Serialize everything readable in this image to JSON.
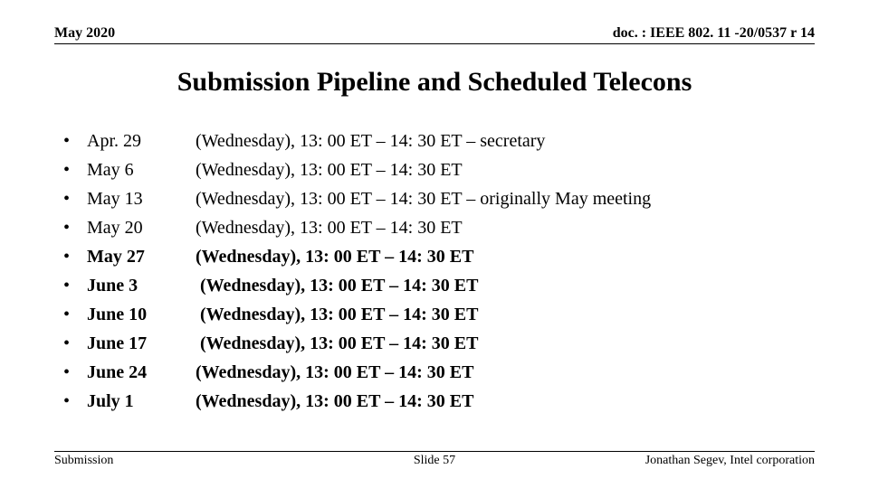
{
  "header": {
    "left": "May 2020",
    "right": "doc. : IEEE 802. 11 -20/0537 r 14"
  },
  "title": "Submission Pipeline and Scheduled Telecons",
  "rows": [
    {
      "date": "Apr. 29",
      "desc": "(Wednesday), 13: 00 ET – 14: 30 ET – secretary",
      "bold": false,
      "indent": ""
    },
    {
      "date": "May 6",
      "desc": "(Wednesday), 13: 00 ET – 14: 30 ET",
      "bold": false,
      "indent": ""
    },
    {
      "date": "May 13",
      "desc": "(Wednesday), 13: 00 ET – 14: 30 ET – originally May meeting",
      "bold": false,
      "indent": ""
    },
    {
      "date": "May 20",
      "desc": "(Wednesday), 13: 00 ET – 14: 30 ET",
      "bold": false,
      "indent": ""
    },
    {
      "date": "May 27",
      "desc": "(Wednesday), 13: 00 ET – 14: 30 ET",
      "bold": true,
      "indent": ""
    },
    {
      "date": "June 3",
      "desc": " (Wednesday), 13: 00 ET – 14: 30 ET",
      "bold": true,
      "indent": ""
    },
    {
      "date": "June 10",
      "desc": " (Wednesday), 13: 00 ET – 14: 30 ET",
      "bold": true,
      "indent": ""
    },
    {
      "date": "June 17",
      "desc": " (Wednesday), 13: 00 ET – 14: 30 ET",
      "bold": true,
      "indent": ""
    },
    {
      "date": "June 24",
      "desc": "(Wednesday), 13: 00 ET – 14: 30 ET",
      "bold": true,
      "indent": ""
    },
    {
      "date": "July 1",
      "desc": "(Wednesday), 13: 00 ET – 14: 30 ET",
      "bold": true,
      "indent": ""
    }
  ],
  "footer": {
    "left": "Submission",
    "center": "Slide 57",
    "right": "Jonathan Segev, Intel corporation"
  }
}
